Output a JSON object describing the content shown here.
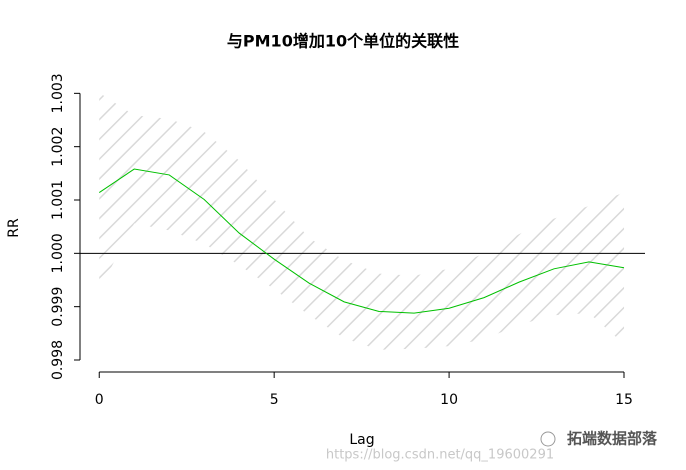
{
  "chart_data": {
    "type": "line",
    "title": "与PM10增加10个单位的关联性",
    "x_label": "Lag",
    "y_label": "RR",
    "x": [
      0,
      1,
      2,
      3,
      4,
      5,
      6,
      7,
      8,
      9,
      10,
      11,
      12,
      13,
      14,
      15
    ],
    "series": [
      {
        "color": "#00c000",
        "values": [
          1.00114,
          1.00158,
          1.00147,
          1.00101,
          1.00038,
          0.99989,
          0.99944,
          0.99909,
          0.99891,
          0.99888,
          0.99897,
          0.99917,
          0.99946,
          0.99971,
          0.99984,
          0.99973
        ]
      }
    ],
    "band": {
      "color": "#d9d9d9",
      "upper": [
        1.00301,
        1.00259,
        1.00252,
        1.00228,
        1.00174,
        1.00101,
        1.00029,
        0.99987,
        0.99962,
        0.99958,
        0.99971,
        1.0,
        1.00036,
        1.00065,
        1.00089,
        1.00114
      ],
      "lower": [
        0.99931,
        1.00056,
        1.00043,
        1.00018,
        0.99978,
        0.99933,
        0.99884,
        0.99841,
        0.99819,
        0.99821,
        0.99826,
        0.99839,
        0.99866,
        0.99884,
        0.99888,
        0.9983
      ]
    },
    "hline": 1,
    "xlim": [
      -0.55,
      15.6
    ],
    "ylim": [
      0.99785,
      1.00325
    ],
    "xticks": [
      0,
      5,
      10,
      15
    ],
    "yticks": [
      0.998,
      0.999,
      {
        "value": 1,
        "label": "1.000"
      },
      1.001,
      1.002,
      1.003
    ]
  },
  "watermark": {
    "url": "https://blog.csdn.net/qq_19600291",
    "brand": "拓端数据部落"
  }
}
